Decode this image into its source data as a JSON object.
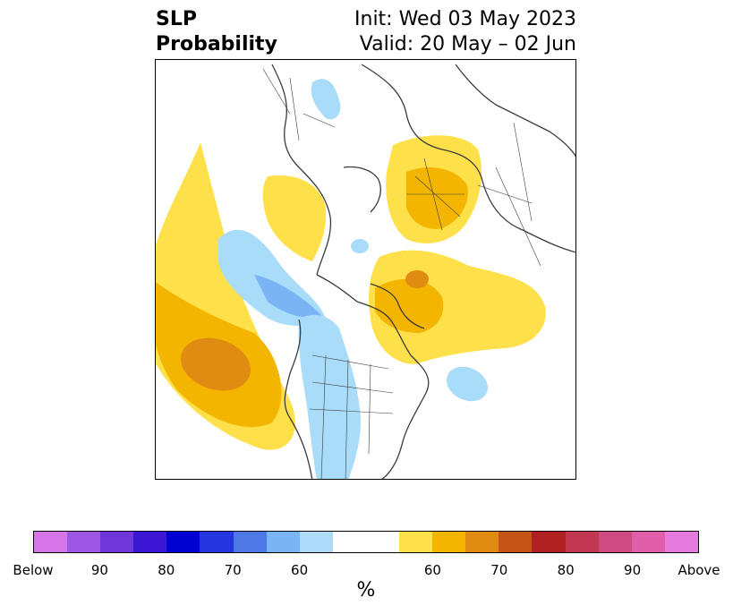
{
  "title": {
    "variable": "SLP",
    "kind": "Probability",
    "init": "Init: Wed 03 May 2023",
    "valid": "Valid: 20 May – 02 Jun"
  },
  "colorbar": {
    "unit": "%",
    "colors": [
      "#d675e8",
      "#9c58e2",
      "#6f37d8",
      "#3b16d4",
      "#0000d0",
      "#2436de",
      "#4e78e6",
      "#7bb4f4",
      "#aedcf8",
      "#ffffff",
      "#ffffff",
      "#fee14a",
      "#f4b500",
      "#e08b12",
      "#c65418",
      "#b02222",
      "#c13650",
      "#cf4a7e",
      "#df5fab",
      "#e77adf"
    ],
    "tick_labels": [
      "Below",
      "90",
      "80",
      "70",
      "60",
      "60",
      "70",
      "80",
      "90",
      "Above"
    ]
  },
  "map_colors": {
    "light_blue": "#a9dcf8",
    "mid_blue": "#7bb4f4",
    "yellow": "#fee14a",
    "gold": "#f4b500",
    "orange": "#e08b12",
    "coast": "#3a3a3a"
  }
}
